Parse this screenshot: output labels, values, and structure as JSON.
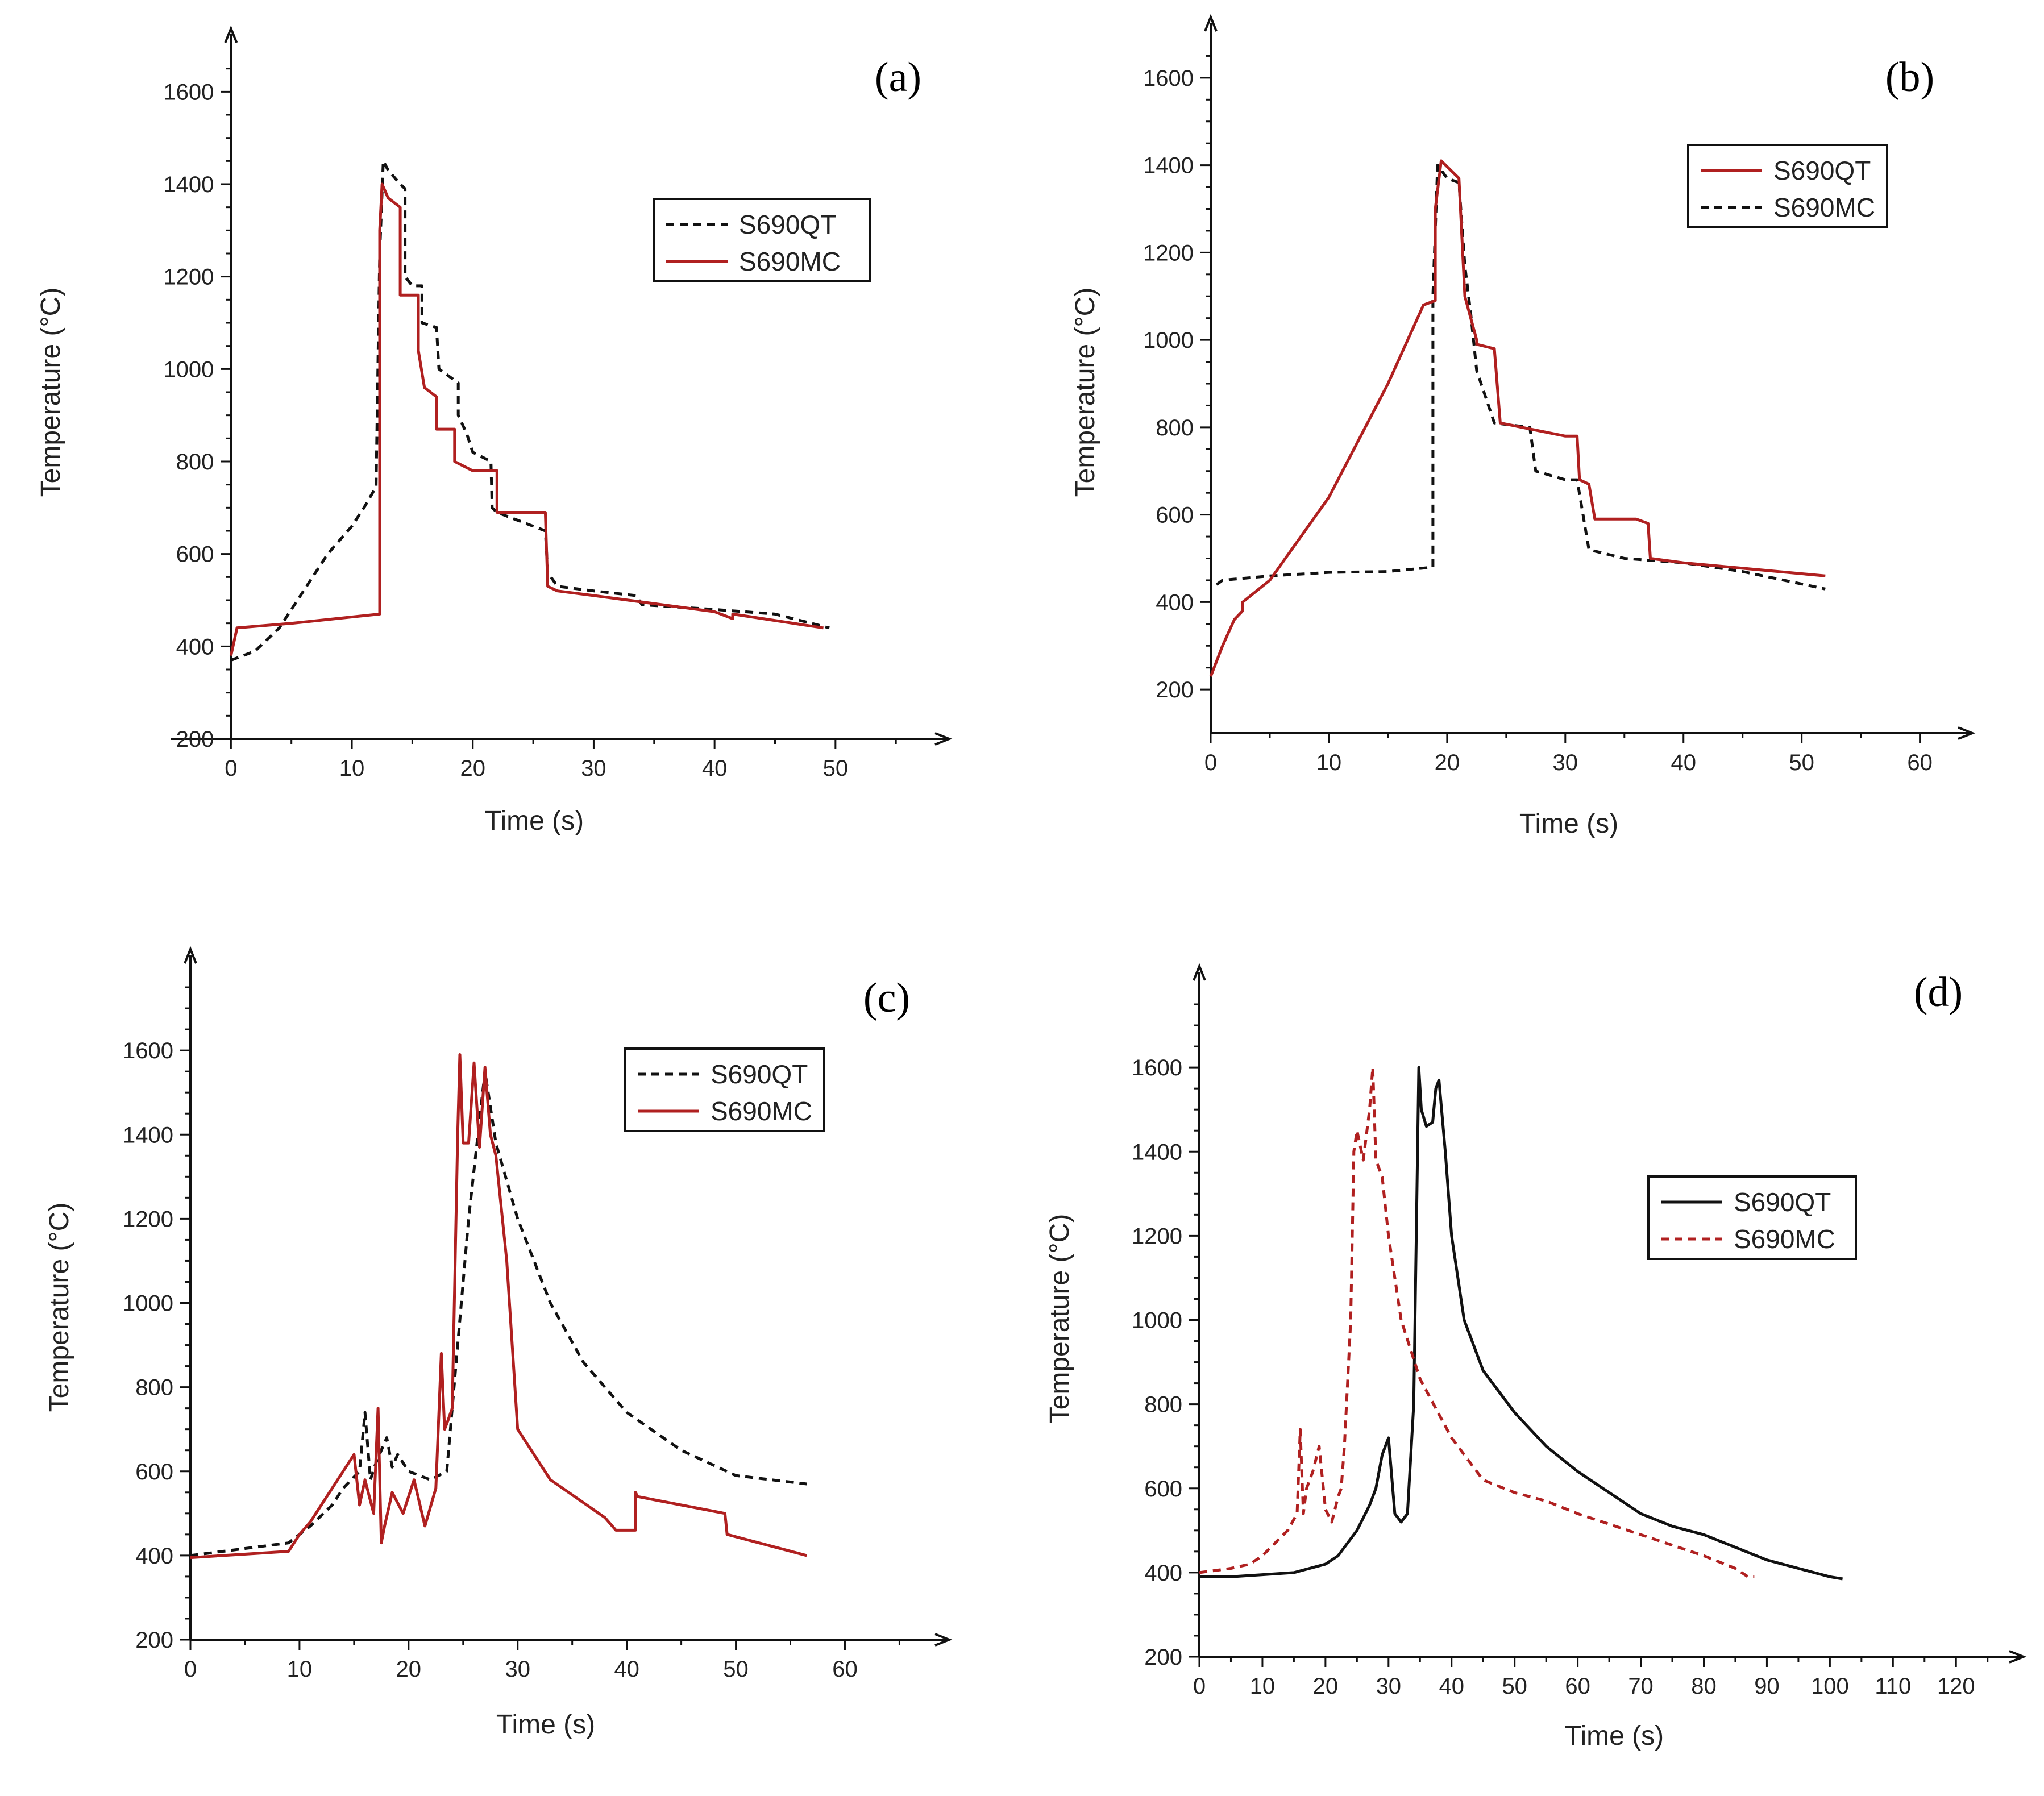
{
  "colors": {
    "S690QT": "#111111",
    "S690MC": "#b02020"
  },
  "chart_data": [
    {
      "panel": "(a)",
      "type": "line",
      "xlabel": "Time (s)",
      "ylabel": "Temperature (°C)",
      "xlim": [
        -5,
        58
      ],
      "ylim": [
        200,
        1700
      ],
      "xticks": [
        0,
        10,
        20,
        30,
        40,
        50
      ],
      "yticks": [
        200,
        400,
        600,
        800,
        1000,
        1200,
        1400,
        1600
      ],
      "legend": [
        "S690QT",
        "S690MC"
      ],
      "legend_position": "upper-right",
      "series": [
        {
          "name": "S690QT",
          "style": "dash",
          "color_key": "S690QT",
          "x": [
            0,
            2,
            4,
            6,
            8,
            10,
            11,
            12,
            12.3,
            12.6,
            13,
            14,
            14.4,
            14.4,
            15,
            15.8,
            15.8,
            17,
            17.2,
            17.2,
            18.8,
            18.8,
            19.5,
            20,
            21.5,
            21.6,
            22,
            26,
            26.2,
            27,
            30,
            33.5,
            34,
            40,
            45,
            49.5
          ],
          "y": [
            370,
            390,
            440,
            520,
            600,
            660,
            700,
            745,
            1250,
            1450,
            1430,
            1400,
            1390,
            1200,
            1180,
            1180,
            1100,
            1090,
            1000,
            1000,
            970,
            900,
            860,
            820,
            800,
            700,
            690,
            650,
            560,
            530,
            520,
            510,
            490,
            480,
            470,
            440
          ]
        },
        {
          "name": "S690MC",
          "style": "solid",
          "color_key": "S690MC",
          "x": [
            0,
            0.5,
            5,
            12.3,
            12.3,
            12.5,
            13,
            14,
            14,
            15.5,
            15.5,
            16,
            17,
            17,
            18.5,
            18.5,
            20,
            22,
            22,
            26,
            26.2,
            27,
            30,
            40,
            41.5,
            41.5,
            49
          ],
          "y": [
            380,
            440,
            450,
            470,
            1300,
            1400,
            1370,
            1350,
            1160,
            1160,
            1040,
            960,
            940,
            870,
            870,
            800,
            780,
            780,
            690,
            690,
            530,
            520,
            510,
            475,
            460,
            470,
            440
          ]
        }
      ]
    },
    {
      "panel": "(b)",
      "type": "line",
      "xlabel": "Time (s)",
      "ylabel": "Temperature (°C)",
      "xlim": [
        0,
        63
      ],
      "ylim": [
        100,
        1700
      ],
      "xticks": [
        0,
        10,
        20,
        30,
        40,
        50,
        60
      ],
      "yticks": [
        200,
        400,
        600,
        800,
        1000,
        1200,
        1400,
        1600
      ],
      "legend": [
        "S690QT",
        "S690MC"
      ],
      "legend_position": "upper-right",
      "series": [
        {
          "name": "S690MC",
          "style": "dash",
          "color_key": "S690QT",
          "x": [
            0.5,
            1,
            5,
            10,
            15,
            18.8,
            18.8,
            19.2,
            20,
            21,
            21.5,
            22,
            22.5,
            24,
            27,
            27.5,
            30,
            31,
            32,
            35,
            40,
            45,
            52
          ],
          "y": [
            440,
            450,
            460,
            468,
            470,
            480,
            1100,
            1400,
            1370,
            1360,
            1170,
            1060,
            930,
            810,
            800,
            700,
            680,
            680,
            520,
            500,
            490,
            470,
            430
          ]
        },
        {
          "name": "S690QT",
          "style": "solid",
          "color_key": "S690MC",
          "x": [
            0,
            1,
            2,
            2.7,
            2.7,
            5,
            10,
            15,
            18,
            19,
            19,
            19.5,
            21,
            21.5,
            22.5,
            22.5,
            24,
            24.5,
            30,
            31,
            31.2,
            32,
            32.5,
            36,
            37,
            37.2,
            40,
            52
          ],
          "y": [
            230,
            300,
            360,
            380,
            400,
            450,
            640,
            900,
            1080,
            1090,
            1300,
            1410,
            1370,
            1100,
            1000,
            990,
            980,
            810,
            780,
            780,
            680,
            670,
            590,
            590,
            580,
            500,
            490,
            460
          ]
        }
      ]
    },
    {
      "panel": "(c)",
      "type": "line",
      "xlabel": "Time (s)",
      "ylabel": "Temperature (°C)",
      "xlim": [
        0,
        68
      ],
      "ylim": [
        200,
        1800
      ],
      "xticks": [
        0,
        10,
        20,
        30,
        40,
        50,
        60
      ],
      "yticks": [
        200,
        400,
        600,
        800,
        1000,
        1200,
        1400,
        1600
      ],
      "legend": [
        "S690QT",
        "S690MC"
      ],
      "legend_position": "upper-right",
      "series": [
        {
          "name": "S690QT",
          "style": "dash",
          "color_key": "S690QT",
          "x": [
            0,
            3,
            6,
            9,
            11,
            13,
            14,
            15.5,
            16,
            16.5,
            17,
            18,
            18.5,
            19,
            20,
            22,
            23.5,
            24.5,
            25.5,
            27,
            28,
            30,
            33,
            36,
            40,
            45,
            50,
            56.5
          ],
          "y": [
            400,
            410,
            420,
            430,
            470,
            520,
            560,
            600,
            740,
            580,
            620,
            680,
            610,
            640,
            600,
            580,
            600,
            900,
            1200,
            1550,
            1380,
            1200,
            1000,
            860,
            740,
            650,
            590,
            570
          ]
        },
        {
          "name": "S690MC",
          "style": "solid",
          "color_key": "S690MC",
          "x": [
            0,
            3,
            6,
            9,
            10,
            11,
            12,
            13,
            14,
            15,
            15.5,
            16,
            16.8,
            17.2,
            17.5,
            17.8,
            18.5,
            19.5,
            20.5,
            21.5,
            22.5,
            23,
            23.3,
            23.6,
            24,
            24.5,
            24.7,
            25,
            25.5,
            26,
            26.5,
            27,
            27.5,
            28,
            29,
            30,
            33,
            38,
            39,
            40.8,
            40.8,
            41,
            49,
            49.2,
            56.5
          ],
          "y": [
            395,
            400,
            405,
            410,
            450,
            480,
            520,
            560,
            600,
            640,
            520,
            580,
            500,
            750,
            430,
            470,
            550,
            500,
            580,
            470,
            560,
            880,
            700,
            720,
            750,
            1400,
            1590,
            1380,
            1380,
            1570,
            1370,
            1560,
            1400,
            1350,
            1100,
            700,
            580,
            490,
            460,
            460,
            550,
            540,
            500,
            450,
            400
          ]
        }
      ]
    },
    {
      "panel": "(d)",
      "type": "line",
      "xlabel": "Time (s)",
      "ylabel": "Temperature (°C)",
      "xlim": [
        0,
        128
      ],
      "ylim": [
        200,
        1800
      ],
      "xticks": [
        0,
        10,
        20,
        30,
        40,
        50,
        60,
        70,
        80,
        90,
        100,
        110,
        120
      ],
      "yticks": [
        200,
        400,
        600,
        800,
        1000,
        1200,
        1400,
        1600
      ],
      "legend": [
        "S690QT",
        "S690MC"
      ],
      "legend_position": "center-right",
      "series": [
        {
          "name": "S690QT",
          "style": "solid",
          "color_key": "S690QT",
          "x": [
            0,
            5,
            10,
            15,
            20,
            22,
            25,
            27,
            28,
            29,
            30,
            31,
            32,
            33,
            34,
            34.8,
            35.2,
            36,
            37,
            37.5,
            38,
            39,
            40,
            42,
            45,
            50,
            55,
            60,
            65,
            70,
            75,
            80,
            85,
            90,
            95,
            100,
            102
          ],
          "y": [
            390,
            390,
            395,
            400,
            420,
            440,
            500,
            560,
            600,
            680,
            720,
            540,
            520,
            540,
            800,
            1600,
            1500,
            1460,
            1470,
            1550,
            1570,
            1400,
            1200,
            1000,
            880,
            780,
            700,
            640,
            590,
            540,
            510,
            490,
            460,
            430,
            410,
            390,
            385
          ]
        },
        {
          "name": "S690MC",
          "style": "dash",
          "color_key": "S690MC",
          "x": [
            0,
            5,
            8,
            10,
            12,
            14,
            15.5,
            16,
            16.5,
            17,
            18,
            19,
            20,
            21,
            22,
            22.5,
            23,
            24,
            24.5,
            25,
            26,
            27,
            27.5,
            28,
            29,
            30,
            32,
            35,
            40,
            45,
            50,
            55,
            60,
            70,
            80,
            85,
            87,
            88
          ],
          "y": [
            400,
            410,
            420,
            440,
            470,
            500,
            540,
            740,
            540,
            600,
            640,
            700,
            550,
            520,
            580,
            600,
            700,
            1000,
            1400,
            1450,
            1380,
            1500,
            1600,
            1380,
            1340,
            1200,
            1000,
            860,
            720,
            620,
            590,
            570,
            540,
            490,
            440,
            410,
            390,
            390
          ]
        }
      ]
    }
  ]
}
